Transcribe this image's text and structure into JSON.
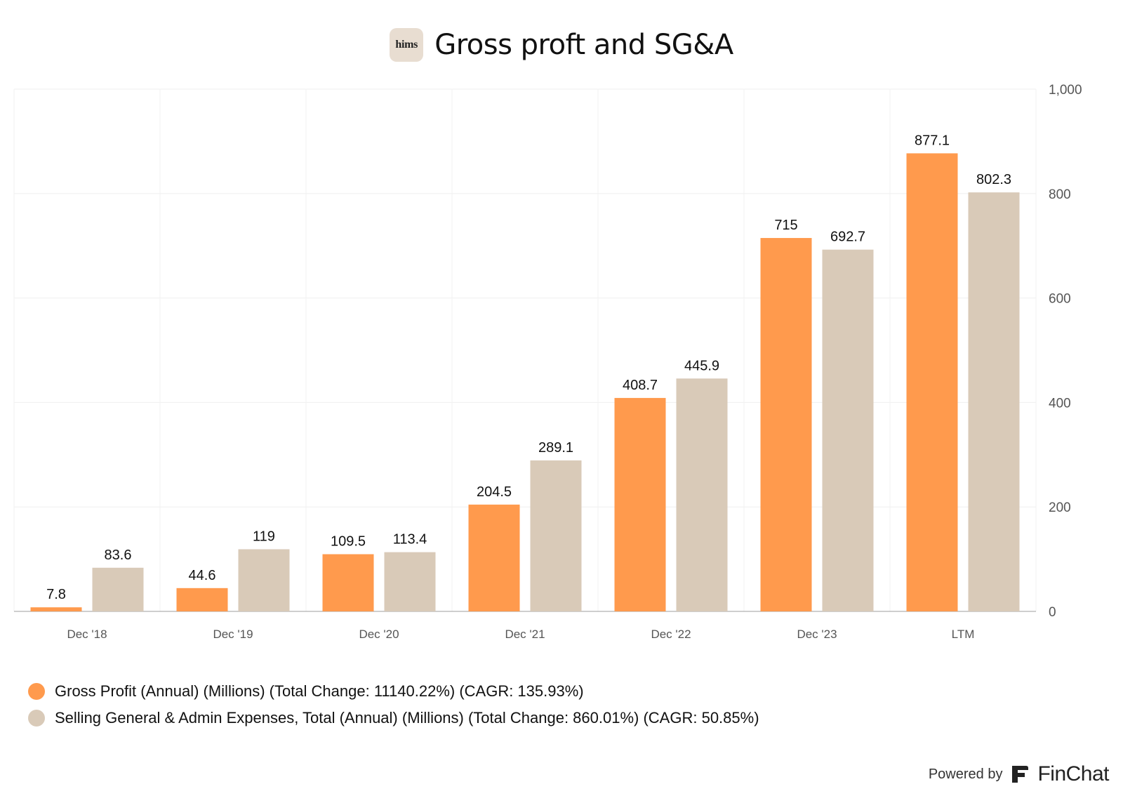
{
  "header": {
    "logo_text": "hims",
    "title": "Gross proft and SG&A"
  },
  "chart_data": {
    "type": "bar",
    "categories": [
      "Dec '18",
      "Dec '19",
      "Dec '20",
      "Dec '21",
      "Dec '22",
      "Dec '23",
      "LTM"
    ],
    "series": [
      {
        "name": "Gross Profit (Annual) (Millions) (Total Change: 11140.22%) (CAGR: 135.93%)",
        "color": "#ff9a4d",
        "values": [
          7.8,
          44.6,
          109.5,
          204.5,
          408.7,
          715,
          877.1
        ],
        "labels": [
          "7.8",
          "44.6",
          "109.5",
          "204.5",
          "408.7",
          "715",
          "877.1"
        ]
      },
      {
        "name": "Selling General & Admin Expenses, Total (Annual) (Millions) (Total Change: 860.01%) (CAGR: 50.85%)",
        "color": "#d9cab8",
        "values": [
          83.6,
          119,
          113.4,
          289.1,
          445.9,
          692.7,
          802.3
        ],
        "labels": [
          "83.6",
          "119",
          "113.4",
          "289.1",
          "445.9",
          "692.7",
          "802.3"
        ]
      }
    ],
    "ylim": [
      0,
      1000
    ],
    "yticks": [
      0,
      200,
      400,
      600,
      800,
      1000
    ],
    "ytick_labels": [
      "0",
      "200",
      "400",
      "600",
      "800",
      "1,000"
    ],
    "y_axis_side": "right",
    "grid": true,
    "legend_position": "bottom-left"
  },
  "footer": {
    "powered_by": "Powered by",
    "brand": "FinChat"
  }
}
